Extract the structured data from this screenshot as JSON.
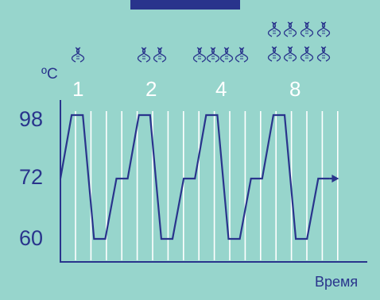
{
  "chart_data": {
    "type": "line",
    "y_unit": "ºC",
    "y_ticks": [
      98,
      72,
      60
    ],
    "xlabel": "Время",
    "cycles": [
      {
        "label": "1",
        "dna_copies": 1
      },
      {
        "label": "2",
        "dna_copies": 2
      },
      {
        "label": "4",
        "dna_copies": 4
      },
      {
        "label": "8",
        "dna_copies": 8
      }
    ],
    "series": [
      {
        "values": [
          [
            0,
            72
          ],
          [
            1.5,
            98
          ],
          [
            3,
            98
          ],
          [
            4.5,
            60
          ],
          [
            6,
            60
          ],
          [
            7.5,
            72
          ],
          [
            9,
            72
          ],
          [
            10.5,
            98
          ],
          [
            12,
            98
          ],
          [
            13.5,
            60
          ],
          [
            15,
            60
          ],
          [
            16.5,
            72
          ],
          [
            18,
            72
          ],
          [
            19.5,
            98
          ],
          [
            21,
            98
          ],
          [
            22.5,
            60
          ],
          [
            24,
            60
          ],
          [
            25.5,
            72
          ],
          [
            27,
            72
          ],
          [
            28.5,
            98
          ],
          [
            30,
            98
          ],
          [
            31.5,
            60
          ],
          [
            33,
            60
          ],
          [
            34.5,
            72
          ],
          [
            36,
            72
          ]
        ]
      }
    ],
    "colors": {
      "line": "#29348c",
      "grid": "#ffffff",
      "background": "#97d5cc",
      "accent": "#29348c"
    },
    "grid": "vertical"
  }
}
